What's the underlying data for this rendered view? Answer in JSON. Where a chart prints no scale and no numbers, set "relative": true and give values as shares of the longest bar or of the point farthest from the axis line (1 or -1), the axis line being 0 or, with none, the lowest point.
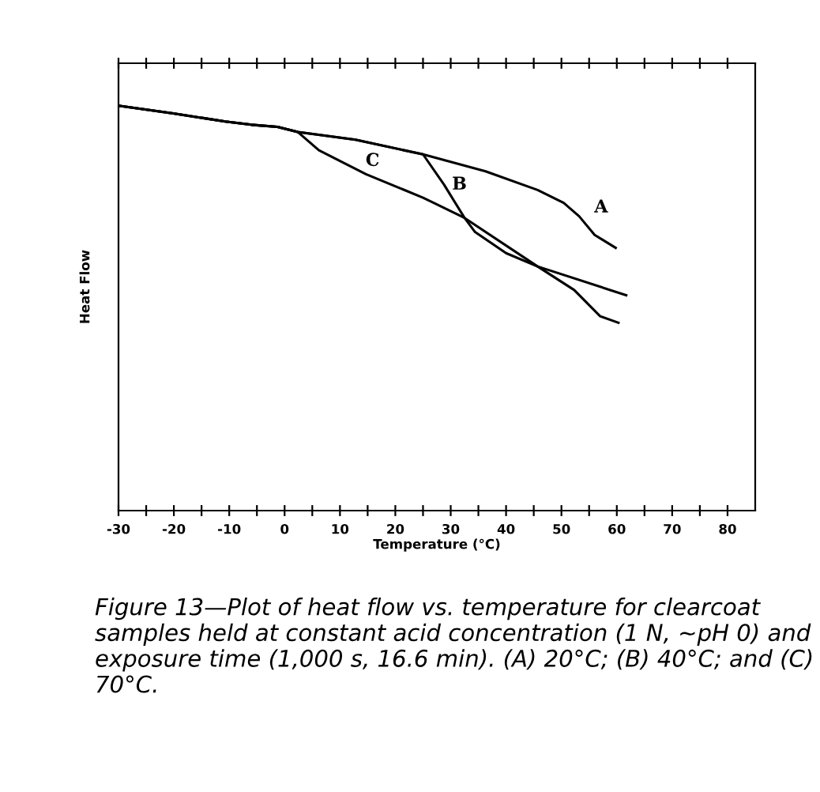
{
  "chart_data": {
    "type": "line",
    "relative": true,
    "xlabel": "Temperature (°C)",
    "ylabel": "Heat Flow",
    "xlim": [
      -30,
      85
    ],
    "xticks": [
      -30,
      {
        "value": -25,
        "label": null
      },
      -20,
      {
        "value": -15,
        "label": null
      },
      -10,
      {
        "value": -5,
        "label": null
      },
      0,
      {
        "value": 5,
        "label": null
      },
      10,
      {
        "value": 15,
        "label": null
      },
      20,
      {
        "value": 25,
        "label": null
      },
      30,
      {
        "value": 35,
        "label": null
      },
      40,
      {
        "value": 45,
        "label": null
      },
      50,
      {
        "value": 55,
        "label": null
      },
      60,
      {
        "value": 65,
        "label": null
      },
      70,
      {
        "value": 75,
        "label": null
      },
      80
    ],
    "tick_labels": "x",
    "grid": false,
    "legend": false,
    "marker": "none",
    "line_style": "solid",
    "series": [
      {
        "name": "A",
        "color": "#000000",
        "x": [
          -30,
          -20.1,
          -10.7,
          -6.0,
          -1.3,
          2.4,
          12.8,
          25.0,
          36.3,
          45.7,
          50.4,
          53.2,
          56.0,
          59.8
        ],
        "values": [
          1.0,
          0.981,
          0.961,
          0.953,
          0.948,
          0.935,
          0.916,
          0.88,
          0.838,
          0.792,
          0.76,
          0.727,
          0.681,
          0.649
        ]
      },
      {
        "name": "B",
        "color": "#000000",
        "x": [
          -30,
          -20.1,
          -10.7,
          -6.0,
          -1.3,
          2.4,
          12.8,
          25.0,
          28.8,
          32.5,
          34.4,
          40.0,
          45.7,
          52.3,
          57.0,
          60.3
        ],
        "values": [
          1.0,
          0.981,
          0.961,
          0.953,
          0.948,
          0.935,
          0.916,
          0.88,
          0.805,
          0.723,
          0.688,
          0.636,
          0.603,
          0.545,
          0.48,
          0.464
        ]
      },
      {
        "name": "C",
        "color": "#000000",
        "x": [
          -30,
          -20.1,
          -10.7,
          -6.0,
          -1.3,
          2.4,
          6.2,
          14.7,
          25.0,
          32.5,
          45.7,
          61.7
        ],
        "values": [
          1.0,
          0.981,
          0.961,
          0.953,
          0.948,
          0.935,
          0.89,
          0.831,
          0.773,
          0.723,
          0.603,
          0.532
        ]
      }
    ],
    "annotations": [
      "Figure 13—Plot of heat flow vs. temperature for clearcoat samples held at constant acid concentration (1 N, ~pH 0) and exposure time (1,000 s, 16.6 min). (A) 20°C; (B) 40°C; and (C) 70°C."
    ]
  }
}
